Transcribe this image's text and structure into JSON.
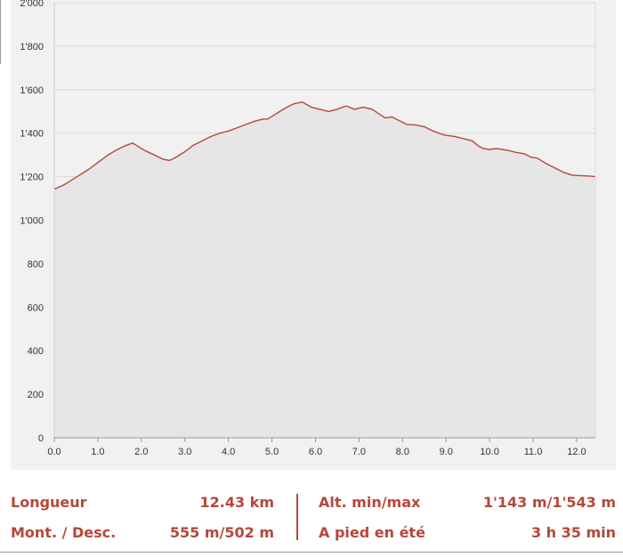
{
  "chart_data": {
    "type": "area",
    "xlim": [
      0,
      12.43
    ],
    "ylim": [
      0,
      2000
    ],
    "x_ticks": [
      "0.0",
      "1.0",
      "2.0",
      "3.0",
      "4.0",
      "5.0",
      "6.0",
      "7.0",
      "8.0",
      "9.0",
      "10.0",
      "11.0",
      "12.0"
    ],
    "x_tick_values": [
      0,
      1,
      2,
      3,
      4,
      5,
      6,
      7,
      8,
      9,
      10,
      11,
      12
    ],
    "y_ticks": [
      "0",
      "200",
      "400",
      "600",
      "800",
      "1'000",
      "1'200",
      "1'400",
      "1'600",
      "1'800",
      "2'000"
    ],
    "y_tick_values": [
      0,
      200,
      400,
      600,
      800,
      1000,
      1200,
      1400,
      1600,
      1800,
      2000
    ],
    "grid": "horizontal",
    "legend": "none",
    "line_color": "#b5473a",
    "fill_color": "#e6e6e6",
    "series": [
      {
        "x": [
          0,
          0.2,
          0.4,
          0.6,
          0.8,
          1.0,
          1.2,
          1.4,
          1.6,
          1.8,
          2.0,
          2.1,
          2.3,
          2.5,
          2.65,
          2.8,
          3.0,
          3.2,
          3.4,
          3.6,
          3.8,
          4.0,
          4.2,
          4.4,
          4.6,
          4.8,
          4.9,
          5.1,
          5.3,
          5.5,
          5.7,
          5.9,
          6.1,
          6.3,
          6.5,
          6.7,
          6.9,
          7.0,
          7.1,
          7.3,
          7.45,
          7.6,
          7.75,
          7.9,
          8.0,
          8.1,
          8.3,
          8.5,
          8.7,
          8.9,
          9.0,
          9.2,
          9.4,
          9.6,
          9.75,
          9.85,
          10.0,
          10.15,
          10.3,
          10.45,
          10.6,
          10.8,
          10.95,
          11.1,
          11.3,
          11.5,
          11.7,
          11.9,
          12.1,
          12.3,
          12.43
        ],
        "y": [
          1143,
          1160,
          1185,
          1210,
          1235,
          1265,
          1295,
          1320,
          1340,
          1355,
          1330,
          1318,
          1300,
          1280,
          1275,
          1290,
          1315,
          1345,
          1365,
          1385,
          1400,
          1410,
          1425,
          1440,
          1455,
          1465,
          1465,
          1490,
          1515,
          1535,
          1543,
          1520,
          1510,
          1500,
          1510,
          1525,
          1510,
          1515,
          1520,
          1510,
          1490,
          1470,
          1475,
          1460,
          1450,
          1440,
          1438,
          1430,
          1410,
          1395,
          1390,
          1385,
          1375,
          1365,
          1340,
          1330,
          1325,
          1330,
          1325,
          1320,
          1312,
          1305,
          1290,
          1285,
          1260,
          1240,
          1220,
          1207,
          1205,
          1203,
          1200
        ]
      }
    ]
  },
  "stats": {
    "length_label": "Longueur",
    "length_value": "12.43 km",
    "ascent_label": "Mont. / Desc.",
    "ascent_value": "555 m/502 m",
    "altitude_label": "Alt. min/max",
    "altitude_value": "1'143 m/1'543 m",
    "time_label": "A pied en été",
    "time_value": "3 h 35 min"
  }
}
